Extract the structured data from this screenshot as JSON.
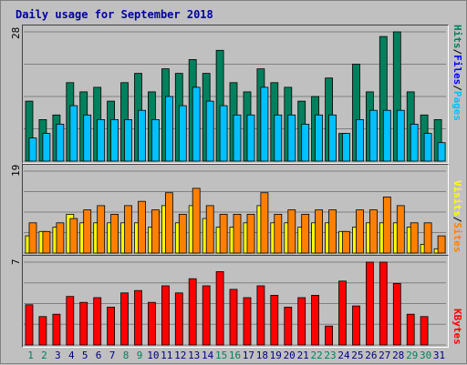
{
  "title": "Daily usage for September 2018",
  "colors": {
    "background": "#C0C0C0",
    "grid": "#808080",
    "hits": "#00805C",
    "files": "#00C0FF",
    "sites": "#FFFF00",
    "visits": "#FF8000",
    "kbytes": "#FF0000",
    "title": "#0000A0",
    "weekend_day": "#00805C",
    "weekday": "#000080"
  },
  "legend": {
    "top": {
      "hits": "Hits",
      "sep1": "/",
      "files": "Files",
      "sep2": "/",
      "pages": "Pages"
    },
    "mid": {
      "visits": "Visits",
      "sep": "/",
      "sites": "Sites"
    },
    "bot": {
      "kbytes": "KBytes"
    }
  },
  "chart_data": [
    {
      "type": "bar",
      "panel": "top",
      "ymax_label": "28",
      "ylim": [
        0,
        28
      ],
      "categories": [
        "1",
        "2",
        "3",
        "4",
        "5",
        "6",
        "7",
        "8",
        "9",
        "10",
        "11",
        "12",
        "13",
        "14",
        "15",
        "16",
        "17",
        "18",
        "19",
        "20",
        "21",
        "22",
        "23",
        "24",
        "25",
        "26",
        "27",
        "28",
        "29",
        "30",
        "31"
      ],
      "series": [
        {
          "name": "Hits",
          "values": [
            13,
            9,
            10,
            17,
            15,
            16,
            13,
            17,
            19,
            15,
            20,
            19,
            22,
            19,
            24,
            17,
            15,
            20,
            17,
            16,
            13,
            14,
            18,
            6,
            21,
            15,
            27,
            28,
            15,
            10,
            9
          ]
        },
        {
          "name": "Files",
          "values": [
            5,
            6,
            8,
            12,
            10,
            9,
            9,
            9,
            11,
            9,
            14,
            12,
            16,
            13,
            12,
            10,
            10,
            16,
            10,
            10,
            8,
            10,
            10,
            6,
            9,
            11,
            11,
            11,
            8,
            6,
            4
          ]
        },
        {
          "name": "Pages",
          "values": [
            0,
            0,
            0,
            0,
            0,
            0,
            0,
            0,
            0,
            0,
            0,
            0,
            0,
            0,
            0,
            0,
            0,
            0,
            0,
            0,
            0,
            0,
            0,
            0,
            0,
            0,
            0,
            0,
            0,
            0,
            0
          ]
        }
      ]
    },
    {
      "type": "bar",
      "panel": "mid",
      "ymax_label": "19",
      "ylim": [
        0,
        19
      ],
      "categories": [
        "1",
        "2",
        "3",
        "4",
        "5",
        "6",
        "7",
        "8",
        "9",
        "10",
        "11",
        "12",
        "13",
        "14",
        "15",
        "16",
        "17",
        "18",
        "19",
        "20",
        "21",
        "22",
        "23",
        "24",
        "25",
        "26",
        "27",
        "28",
        "29",
        "30",
        "31"
      ],
      "series": [
        {
          "name": "Sites",
          "values": [
            4,
            5,
            6,
            9,
            7,
            7,
            7,
            7,
            7,
            6,
            11,
            7,
            11,
            8,
            6,
            6,
            7,
            11,
            7,
            7,
            6,
            7,
            7,
            5,
            6,
            7,
            7,
            7,
            6,
            2,
            1
          ]
        },
        {
          "name": "Visits",
          "values": [
            7,
            5,
            7,
            8,
            10,
            11,
            9,
            11,
            12,
            10,
            14,
            9,
            15,
            11,
            9,
            9,
            9,
            14,
            9,
            10,
            9,
            10,
            10,
            5,
            10,
            10,
            13,
            11,
            7,
            7,
            4
          ]
        }
      ]
    },
    {
      "type": "bar",
      "panel": "bot",
      "ymax_label": "7",
      "ylim": [
        0,
        7
      ],
      "categories": [
        "1",
        "2",
        "3",
        "4",
        "5",
        "6",
        "7",
        "8",
        "9",
        "10",
        "11",
        "12",
        "13",
        "14",
        "15",
        "16",
        "17",
        "18",
        "19",
        "20",
        "21",
        "22",
        "23",
        "24",
        "25",
        "26",
        "27",
        "28",
        "29",
        "30",
        "31"
      ],
      "series": [
        {
          "name": "KBytes",
          "values": [
            3.4,
            2.4,
            2.6,
            4.1,
            3.6,
            4.0,
            3.2,
            4.4,
            4.6,
            3.6,
            5.0,
            4.4,
            5.6,
            5.0,
            6.2,
            4.7,
            4.0,
            5.0,
            4.2,
            3.2,
            4.0,
            4.2,
            1.6,
            5.4,
            3.3,
            7.0,
            7.0,
            5.2,
            2.6,
            2.4,
            0
          ]
        }
      ]
    }
  ],
  "x_axis": {
    "labels": [
      "1",
      "2",
      "3",
      "4",
      "5",
      "6",
      "7",
      "8",
      "9",
      "10",
      "11",
      "12",
      "13",
      "14",
      "15",
      "16",
      "17",
      "18",
      "19",
      "20",
      "21",
      "22",
      "23",
      "24",
      "25",
      "26",
      "27",
      "28",
      "29",
      "30",
      "31"
    ],
    "weekend": [
      1,
      2,
      8,
      9,
      15,
      16,
      22,
      23,
      29,
      30
    ]
  }
}
